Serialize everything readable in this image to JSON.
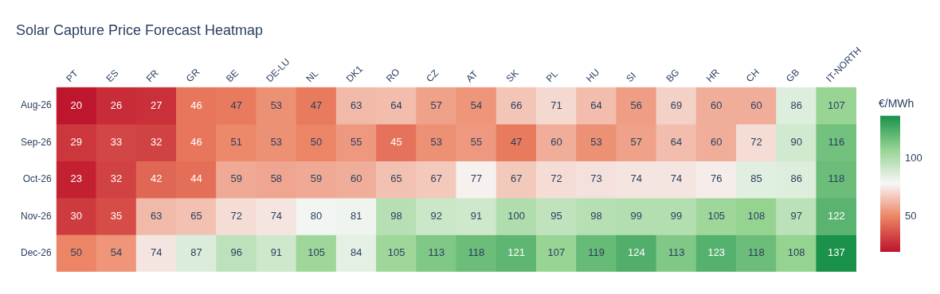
{
  "chart_data": {
    "type": "heatmap",
    "title": "Solar Capture Price Forecast Heatmap",
    "clabel": "€/MWh",
    "categories": [
      "PT",
      "ES",
      "FR",
      "GR",
      "BE",
      "DE-LU",
      "NL",
      "DK1",
      "RO",
      "CZ",
      "AT",
      "SK",
      "PL",
      "HU",
      "SI",
      "BG",
      "HR",
      "CH",
      "GB",
      "IT-NORTH"
    ],
    "y_categories": [
      "Aug-26",
      "Sep-26",
      "Oct-26",
      "Nov-26",
      "Dec-26"
    ],
    "cells": [
      [
        20,
        26,
        27,
        46,
        47,
        53,
        47,
        63,
        64,
        57,
        54,
        66,
        71,
        64,
        56,
        69,
        60,
        60,
        86,
        107
      ],
      [
        29,
        33,
        32,
        46,
        51,
        53,
        50,
        55,
        45,
        53,
        55,
        47,
        60,
        53,
        57,
        64,
        60,
        72,
        90,
        116
      ],
      [
        23,
        32,
        42,
        44,
        59,
        58,
        59,
        60,
        65,
        67,
        77,
        67,
        72,
        73,
        74,
        74,
        76,
        85,
        86,
        118
      ],
      [
        30,
        35,
        63,
        65,
        72,
        74,
        80,
        81,
        98,
        92,
        91,
        100,
        95,
        98,
        99,
        99,
        105,
        108,
        97,
        122
      ],
      [
        50,
        54,
        74,
        87,
        96,
        91,
        105,
        84,
        105,
        113,
        118,
        121,
        107,
        119,
        124,
        113,
        123,
        118,
        108,
        137
      ]
    ],
    "clim": [
      20,
      137
    ],
    "cticks": [
      50,
      100
    ],
    "data_labels": true,
    "grid": false
  }
}
